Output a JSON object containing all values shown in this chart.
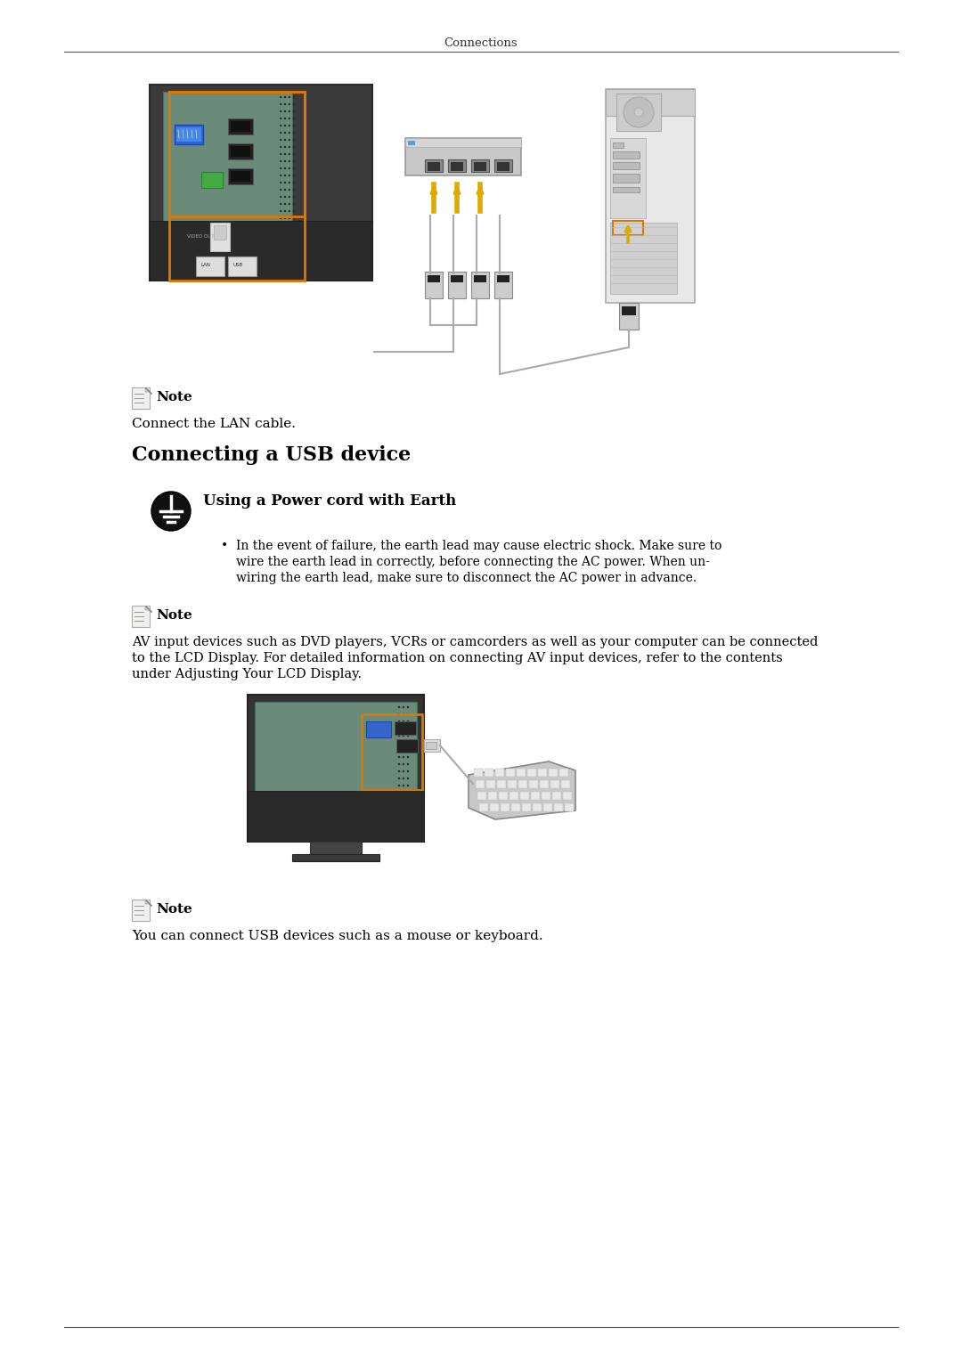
{
  "page_title": "Connections",
  "bg_color": "#ffffff",
  "text_color": "#000000",
  "section_title": "Connecting a USB device",
  "warning_title": "Using a Power cord with Earth",
  "warning_bullet": "In the event of failure, the earth lead may cause electric shock. Make sure to\nwire the earth lead in correctly, before connecting the AC power. When un-\nwiring the earth lead, make sure to disconnect the AC power in advance.",
  "note_label": "Note",
  "note1_text": "Connect the LAN cable.",
  "note2_line1": "AV input devices such as DVD players, VCRs or camcorders as well as your computer can be connected",
  "note2_line2": "to the LCD Display. For detailed information on connecting AV input devices, refer to the contents",
  "note2_line3": "under Adjusting Your LCD Display.",
  "note3_text": "You can connect USB devices such as a mouse or keyboard."
}
